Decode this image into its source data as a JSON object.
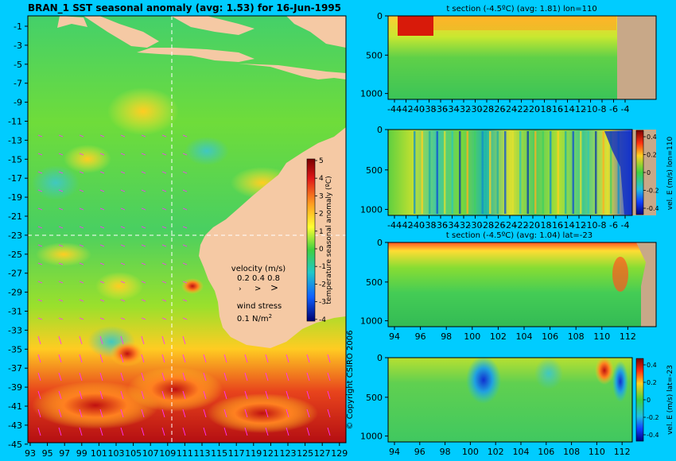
{
  "main_map": {
    "title": "BRAN_1 SST seasonal anomaly (avg: 1.53) for 16-Jun-1995",
    "lat_ticks": [
      "-1",
      "-3",
      "-5",
      "-7",
      "-9",
      "-11",
      "-13",
      "-15",
      "-17",
      "-19",
      "-21",
      "-23",
      "-25",
      "-27",
      "-29",
      "-31",
      "-33",
      "-35",
      "-37",
      "-39",
      "-41",
      "-43",
      "-45"
    ],
    "lon_ticks": [
      "93",
      "95",
      "97",
      "99",
      "101",
      "103",
      "105",
      "107",
      "109",
      "111",
      "113",
      "115",
      "117",
      "119",
      "121",
      "123",
      "125",
      "127",
      "129"
    ],
    "colorbar_ticks": [
      "5",
      "4",
      "3",
      "2",
      "1",
      "0",
      "-1",
      "-2",
      "-3",
      "-4"
    ],
    "colorbar_label": "temperature seasonal anomaly (ºC)",
    "velocity_label": "velocity (m/s)",
    "velocity_scale": "0.2 0.4 0.8",
    "wind_label": "wind stress",
    "wind_scale": "0.1 N/m",
    "wind_scale_exp": "2",
    "copyright": "© Copyright CSIRO 2006",
    "crosshair": {
      "lon": 110,
      "lat": -23
    }
  },
  "panels": {
    "p1": {
      "title": "t section (-4.5ºC) (avg: 1.81) lon=110",
      "y_ticks": [
        "0",
        "500",
        "1000"
      ],
      "x_ticks": [
        "-44",
        "-42",
        "-40",
        "-38",
        "-36",
        "-34",
        "-32",
        "-30",
        "-28",
        "-26",
        "-24",
        "-22",
        "-20",
        "-18",
        "-16",
        "-14",
        "-12",
        "-10",
        "-8",
        "-6",
        "-4"
      ]
    },
    "p2": {
      "title": "",
      "y_ticks": [
        "0",
        "500",
        "1000"
      ],
      "x_ticks": [
        "-44",
        "-42",
        "-40",
        "-38",
        "-36",
        "-34",
        "-32",
        "-30",
        "-28",
        "-26",
        "-24",
        "-22",
        "-20",
        "-18",
        "-16",
        "-14",
        "-12",
        "-10",
        "-8",
        "-6",
        "-4"
      ],
      "cb_ticks": [
        "0.4",
        "0.2",
        "0",
        "-0.2",
        "-0.4"
      ],
      "cb_label": "vel. E (m/s) lon=110"
    },
    "p3": {
      "title": "t section (-4.5ºC) (avg: 1.04) lat=-23",
      "y_ticks": [
        "0",
        "500",
        "1000"
      ],
      "x_ticks": [
        "94",
        "96",
        "98",
        "100",
        "102",
        "104",
        "106",
        "108",
        "110",
        "112"
      ]
    },
    "p4": {
      "title": "",
      "y_ticks": [
        "0",
        "500",
        "1000"
      ],
      "x_ticks": [
        "94",
        "96",
        "98",
        "100",
        "102",
        "104",
        "106",
        "108",
        "110",
        "112"
      ],
      "cb_ticks": [
        "0.4",
        "0.2",
        "0",
        "-0.2",
        "-0.4"
      ],
      "cb_label": "vel. E (m/s) lat=-23"
    }
  },
  "chart_data": [
    {
      "type": "heatmap",
      "title": "BRAN_1 SST seasonal anomaly (avg: 1.53) for 16-Jun-1995",
      "xlim": [
        93,
        130
      ],
      "ylim": [
        -45,
        0
      ],
      "color_range": [
        -4,
        5
      ],
      "colorbar_label": "temperature seasonal anomaly (ºC)",
      "grid": false
    },
    {
      "type": "heatmap",
      "title": "t section (-4.5ºC) (avg: 1.81) lon=110",
      "xlim": [
        -45,
        -3
      ],
      "ylim": [
        1050,
        0
      ]
    },
    {
      "type": "heatmap",
      "title": "",
      "xlim": [
        -45,
        -3
      ],
      "ylim": [
        1050,
        0
      ],
      "color_range": [
        -0.5,
        0.5
      ],
      "colorbar_label": "vel. E (m/s) lon=110"
    },
    {
      "type": "heatmap",
      "title": "t section (-4.5ºC) (avg: 1.04) lat=-23",
      "xlim": [
        93,
        114
      ],
      "ylim": [
        1050,
        0
      ]
    },
    {
      "type": "heatmap",
      "title": "",
      "xlim": [
        93,
        113
      ],
      "ylim": [
        1050,
        0
      ],
      "color_range": [
        -0.5,
        0.5
      ],
      "colorbar_label": "vel. E (m/s) lat=-23"
    }
  ],
  "colors": {
    "background": "#00ccff",
    "land": "#f5c9a4",
    "section_land": "#c8a888",
    "arrows": "#ff33ff",
    "crosshair": "#ffffff"
  }
}
